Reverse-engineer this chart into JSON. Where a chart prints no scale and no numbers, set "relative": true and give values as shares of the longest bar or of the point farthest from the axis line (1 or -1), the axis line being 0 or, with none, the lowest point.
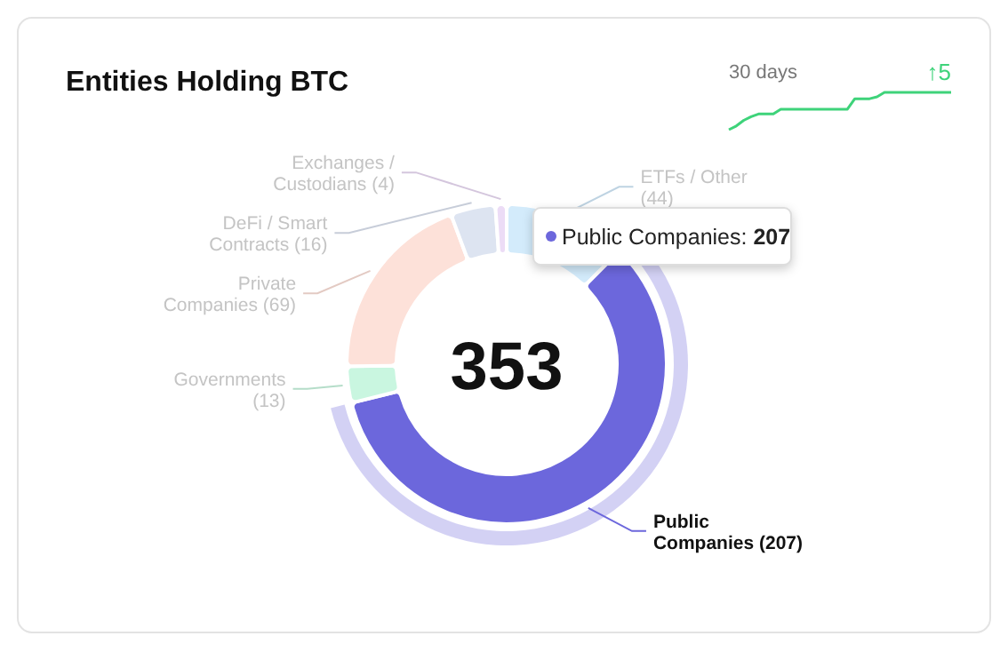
{
  "chart_data": [
    {
      "type": "donut",
      "title": "Entities Holding BTC",
      "categories": [
        "ETFs / Other",
        "Public Companies",
        "Governments",
        "Private Companies",
        "DeFi / Smart Contracts",
        "Exchanges / Custodians"
      ],
      "values": [
        44,
        207,
        13,
        69,
        16,
        4
      ],
      "colors": [
        "#d3ebfb",
        "#6c67dc",
        "#c9f6e0",
        "#fde1d9",
        "#dde4f1",
        "#ecdcf6"
      ],
      "value_labels": [
        "(44)",
        "(207)",
        "(13)",
        "(69)",
        "(16)",
        "(4)"
      ],
      "annotations": [
        "353",
        "Public Companies: 207"
      ]
    },
    {
      "type": "line",
      "title": "30 days",
      "categories": [
        null,
        null,
        null,
        null,
        null,
        null,
        null,
        null,
        null,
        null,
        null,
        null,
        null,
        null,
        null,
        null,
        null,
        null,
        null,
        null,
        null,
        null,
        null,
        null,
        null,
        null,
        null,
        null,
        null,
        null,
        null
      ],
      "relative": true,
      "series": [
        {
          "color": "#3ed37a",
          "values": [
            0,
            0.1,
            0.25,
            0.35,
            0.42,
            0.42,
            0.42,
            0.55,
            0.55,
            0.55,
            0.55,
            0.55,
            0.55,
            0.55,
            0.55,
            0.55,
            0.55,
            0.83,
            0.83,
            0.83,
            0.88,
            1,
            1,
            1,
            1,
            1,
            1,
            1,
            1,
            1,
            1
          ]
        }
      ],
      "annotations": [
        "↑5"
      ]
    }
  ]
}
